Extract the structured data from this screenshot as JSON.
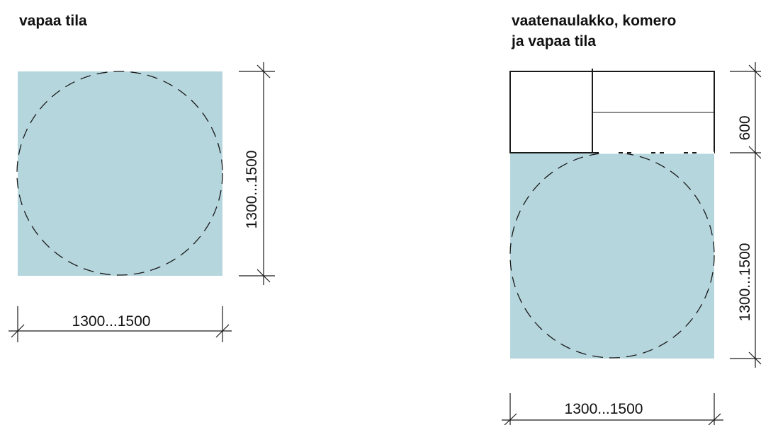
{
  "left_diagram": {
    "title": "vapaa tila",
    "width_dimension": "1300...1500",
    "height_dimension": "1300...1500"
  },
  "right_diagram": {
    "title_line1": "vaatenaulakko, komero",
    "title_line2": "ja vapaa tila",
    "storage_depth_dimension": "600",
    "height_dimension": "1300...1500",
    "width_dimension": "1300...1500"
  },
  "colors": {
    "free_space_fill": "#b6d6de",
    "line": "#1a1a1a"
  }
}
